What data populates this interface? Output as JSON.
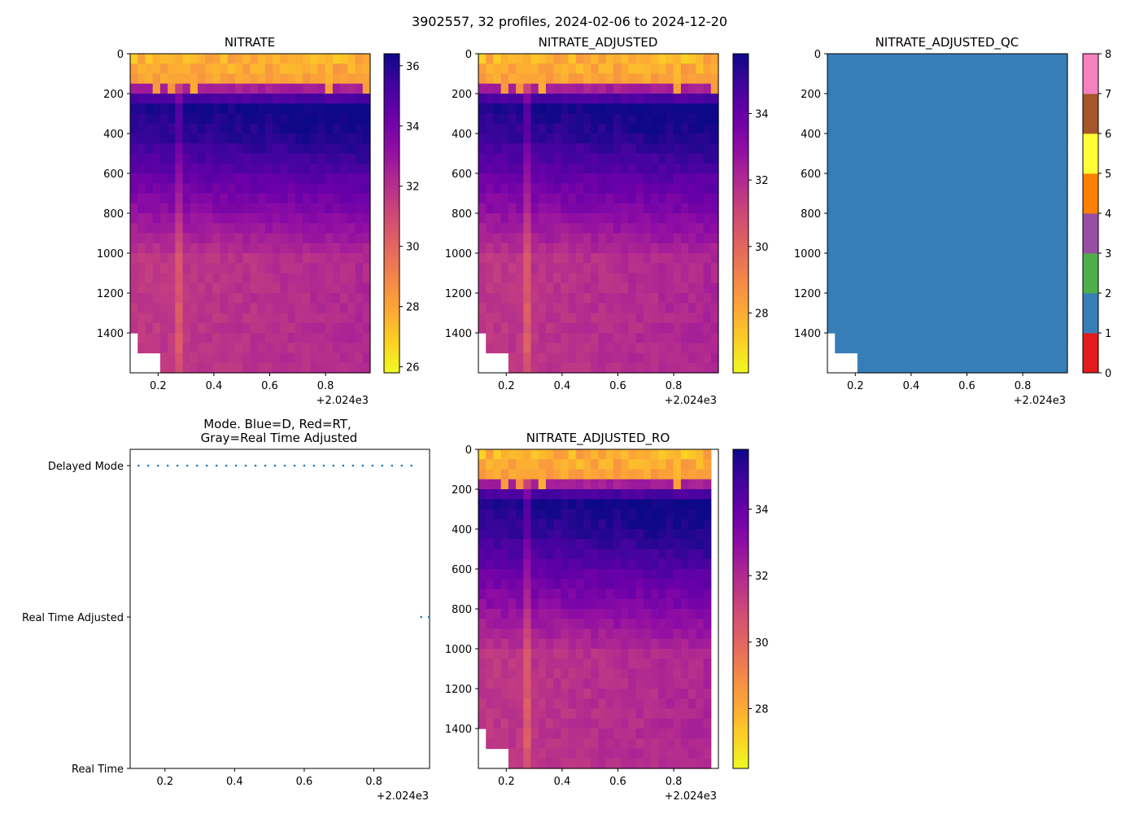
{
  "figure": {
    "suptitle": "3902557, 32 profiles, 2024-02-06 to 2024-12-20",
    "tick_offset": "+2.024e3",
    "x_ticks": [
      "0.2",
      "0.4",
      "0.6",
      "0.8"
    ]
  },
  "colors": {
    "plasma": [
      "#0d0887",
      "#41049d",
      "#6a00a8",
      "#8f0da4",
      "#b12a90",
      "#cc4778",
      "#e16462",
      "#f2844b",
      "#fca636",
      "#fcce25",
      "#f0f921"
    ],
    "qc": [
      "#e41a1c",
      "#377eb8",
      "#4daf4a",
      "#984ea3",
      "#ff7f00",
      "#ffff33",
      "#a65628",
      "#f781bf",
      "#999999"
    ],
    "mode_points": "#1f77b4"
  },
  "chart_data": [
    {
      "id": "nitrate",
      "type": "heatmap",
      "title": "NITRATE",
      "x_range": [
        0.1,
        0.96
      ],
      "y_range": [
        1600,
        0
      ],
      "y_ticks": [
        "0",
        "200",
        "400",
        "600",
        "800",
        "1000",
        "1200",
        "1400"
      ],
      "colorbar": {
        "min": 25.8,
        "max": 36.4,
        "ticks": [
          "26",
          "28",
          "30",
          "32",
          "34",
          "36"
        ]
      },
      "surface_value": 27.2,
      "max_value": 36.1,
      "deep_value": 31.6,
      "gap_profiles": [
        0,
        1,
        2,
        3
      ]
    },
    {
      "id": "nitrate-adjusted",
      "type": "heatmap",
      "title": "NITRATE_ADJUSTED",
      "x_range": [
        0.1,
        0.96
      ],
      "y_range": [
        1600,
        0
      ],
      "y_ticks": [
        "0",
        "200",
        "400",
        "600",
        "800",
        "1000",
        "1200",
        "1400"
      ],
      "colorbar": {
        "min": 26.2,
        "max": 35.8,
        "ticks": [
          "28",
          "30",
          "32",
          "34"
        ]
      },
      "surface_value": 27.4,
      "max_value": 35.5,
      "deep_value": 31.5,
      "gap_profiles": [
        0,
        1,
        2,
        3
      ]
    },
    {
      "id": "nitrate-adjusted-qc",
      "type": "heatmap",
      "title": "NITRATE_ADJUSTED_QC",
      "x_range": [
        0.1,
        0.96
      ],
      "y_range": [
        1600,
        0
      ],
      "y_ticks": [
        "0",
        "200",
        "400",
        "600",
        "800",
        "1000",
        "1200",
        "1400"
      ],
      "qc_value": 1,
      "colorbar": {
        "min": 0,
        "max": 8,
        "ticks": [
          "0",
          "1",
          "2",
          "3",
          "4",
          "5",
          "6",
          "7",
          "8"
        ]
      },
      "gap_profiles": [
        0,
        1,
        2,
        3
      ]
    },
    {
      "id": "mode",
      "type": "scatter",
      "title_line1": "Mode. Blue=D, Red=RT,",
      "title_line2": "Gray=Real Time Adjusted",
      "x_range": [
        0.1,
        0.96
      ],
      "y_categories": [
        "Real Time",
        "Real Time Adjusted",
        "Delayed Mode"
      ],
      "delayed_mode_x": [
        0.124,
        0.152,
        0.18,
        0.208,
        0.236,
        0.264,
        0.292,
        0.32,
        0.348,
        0.376,
        0.404,
        0.432,
        0.46,
        0.488,
        0.516,
        0.544,
        0.572,
        0.6,
        0.628,
        0.656,
        0.684,
        0.712,
        0.74,
        0.768,
        0.796,
        0.824,
        0.852,
        0.88,
        0.908
      ],
      "rt_adjusted_x": [
        0.936,
        0.96
      ]
    },
    {
      "id": "nitrate-adjusted-ro",
      "type": "heatmap",
      "title": "NITRATE_ADJUSTED_RO",
      "x_range": [
        0.1,
        0.96
      ],
      "y_range": [
        1600,
        0
      ],
      "y_ticks": [
        "0",
        "200",
        "400",
        "600",
        "800",
        "1000",
        "1200",
        "1400"
      ],
      "colorbar": {
        "min": 26.2,
        "max": 35.8,
        "ticks": [
          "28",
          "30",
          "32",
          "34"
        ]
      },
      "surface_value": 27.4,
      "max_value": 35.5,
      "deep_value": 31.5,
      "gap_profiles": [
        0,
        1,
        2,
        3
      ],
      "trailing_profiles_missing": 1
    }
  ]
}
